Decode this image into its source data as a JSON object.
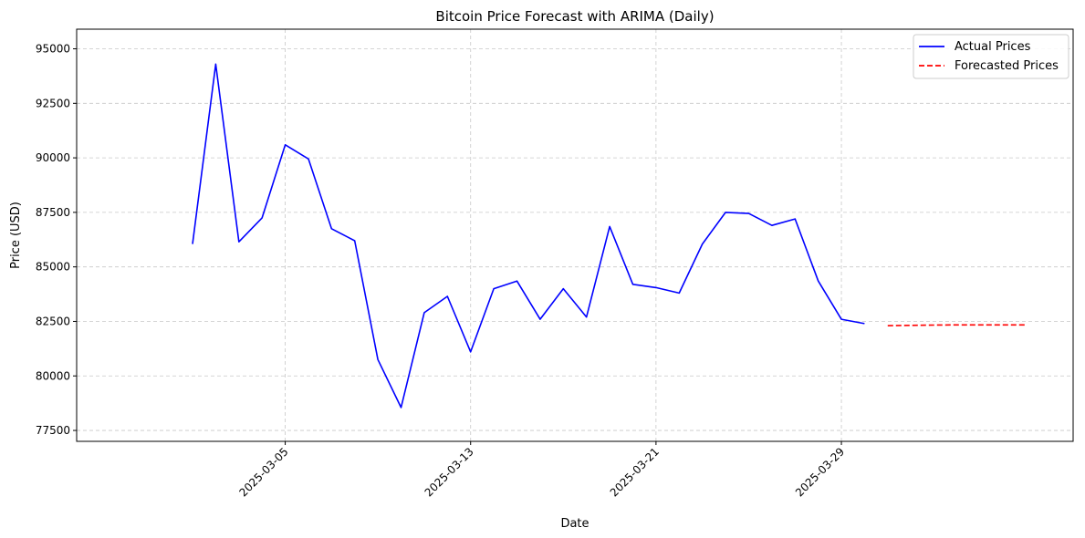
{
  "chart_data": {
    "type": "line",
    "title": "Bitcoin Price Forecast with ARIMA (Daily)",
    "xlabel": "Date",
    "ylabel": "Price (USD)",
    "xlim": [
      "2025-02-24",
      "2025-04-08"
    ],
    "ylim": [
      77000,
      95900
    ],
    "grid": true,
    "legend_position": "top-right",
    "x_ticks": [
      "2025-03-05",
      "2025-03-13",
      "2025-03-21",
      "2025-03-29"
    ],
    "y_ticks": [
      77500,
      80000,
      82500,
      85000,
      87500,
      90000,
      92500,
      95000
    ],
    "y_tick_labels": [
      "77500",
      "80000",
      "82500",
      "85000",
      "87500",
      "90000",
      "92500",
      "95000"
    ],
    "series": [
      {
        "name": "Actual Prices",
        "color": "#0000ff",
        "style": "solid",
        "x": [
          "2025-03-01",
          "2025-03-02",
          "2025-03-03",
          "2025-03-04",
          "2025-03-05",
          "2025-03-06",
          "2025-03-07",
          "2025-03-08",
          "2025-03-09",
          "2025-03-10",
          "2025-03-11",
          "2025-03-12",
          "2025-03-13",
          "2025-03-14",
          "2025-03-15",
          "2025-03-16",
          "2025-03-17",
          "2025-03-18",
          "2025-03-19",
          "2025-03-20",
          "2025-03-21",
          "2025-03-22",
          "2025-03-23",
          "2025-03-24",
          "2025-03-25",
          "2025-03-26",
          "2025-03-27",
          "2025-03-28",
          "2025-03-29",
          "2025-03-30"
        ],
        "y": [
          86050,
          94300,
          86150,
          87250,
          90600,
          89950,
          86750,
          86200,
          80750,
          78550,
          82900,
          83650,
          81100,
          84000,
          84350,
          82600,
          84000,
          82700,
          86850,
          84200,
          84050,
          83800,
          86050,
          87500,
          87450,
          86900,
          87200,
          84350,
          82600,
          82400
        ]
      },
      {
        "name": "Forecasted Prices",
        "color": "#ff0000",
        "style": "dashed",
        "x": [
          "2025-03-31",
          "2025-04-01",
          "2025-04-02",
          "2025-04-03",
          "2025-04-04",
          "2025-04-05",
          "2025-04-06"
        ],
        "y": [
          82300,
          82320,
          82330,
          82340,
          82340,
          82340,
          82340
        ]
      }
    ]
  }
}
